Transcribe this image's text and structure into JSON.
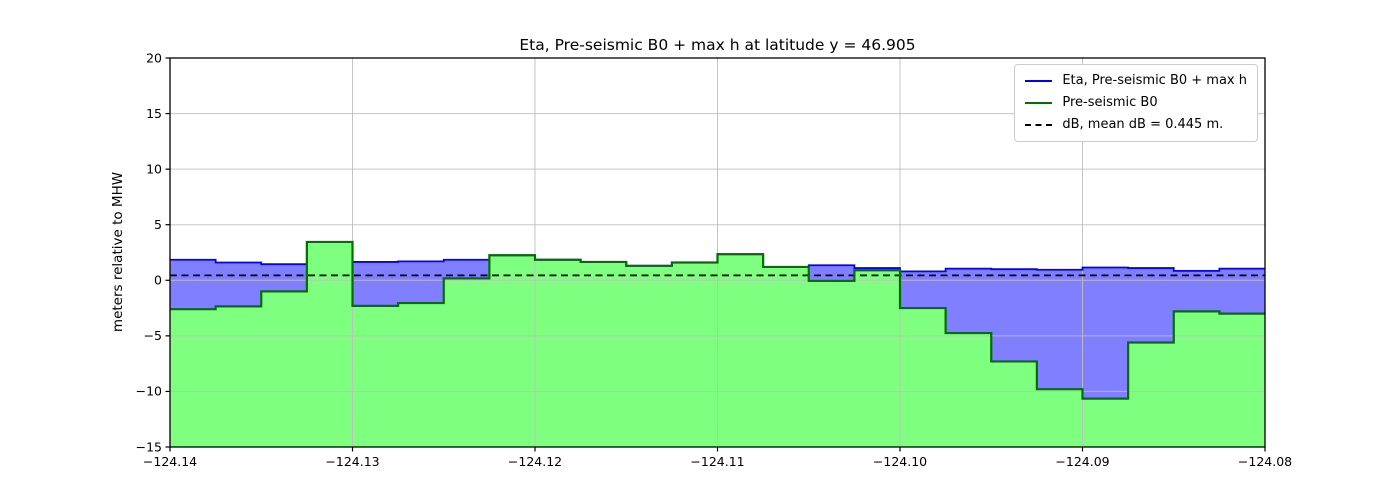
{
  "chart_data": {
    "type": "area",
    "title": "Eta, Pre-seismic B0 + max h at latitude y = 46.905",
    "ylabel": "meters relative to MHW",
    "xlabel": "",
    "xlim": [
      -124.14,
      -124.08
    ],
    "ylim": [
      -15,
      20
    ],
    "grid": true,
    "legend_position": "upper right",
    "x_ticks": [
      -124.14,
      -124.13,
      -124.12,
      -124.11,
      -124.1,
      -124.09,
      -124.08
    ],
    "x_tick_labels": [
      "−124.14",
      "−124.13",
      "−124.12",
      "−124.11",
      "−124.10",
      "−124.09",
      "−124.08"
    ],
    "y_ticks": [
      -15,
      -10,
      -5,
      0,
      5,
      10,
      15,
      20
    ],
    "y_tick_labels": [
      "−15",
      "−10",
      "−5",
      "0",
      "5",
      "10",
      "15",
      "20"
    ],
    "cell_edges": [
      -124.14,
      -124.1375,
      -124.135,
      -124.1325,
      -124.13,
      -124.1275,
      -124.125,
      -124.1225,
      -124.12,
      -124.1175,
      -124.115,
      -124.1125,
      -124.11,
      -124.1075,
      -124.105,
      -124.1025,
      -124.1,
      -124.0975,
      -124.095,
      -124.0925,
      -124.09,
      -124.0875,
      -124.085,
      -124.0825,
      -124.08
    ],
    "series": [
      {
        "name": "Eta, Pre-seismic B0 + max h",
        "style": "step",
        "color": "#0000ff",
        "fill": "rgba(0,0,255,0.5)",
        "values": [
          1.85,
          1.6,
          1.45,
          3.45,
          1.65,
          1.7,
          1.85,
          2.25,
          1.85,
          1.65,
          1.3,
          1.6,
          2.35,
          1.2,
          1.35,
          1.1,
          0.8,
          1.05,
          1.0,
          0.95,
          1.15,
          1.1,
          0.85,
          1.05
        ]
      },
      {
        "name": "Pre-seismic B0",
        "style": "step",
        "color": "#007000",
        "fill": "rgba(0,255,0,0.5)",
        "values": [
          -2.6,
          -2.35,
          -1.0,
          3.45,
          -2.3,
          -2.05,
          0.17,
          2.25,
          1.85,
          1.65,
          1.3,
          1.6,
          2.35,
          1.2,
          -0.05,
          0.9,
          -2.5,
          -4.75,
          -7.3,
          -9.8,
          -10.65,
          -5.6,
          -2.8,
          -3.0
        ]
      },
      {
        "name": "dB, mean dB = 0.445 m.",
        "style": "hline-dashed",
        "color": "#000000",
        "value": 0.445
      }
    ],
    "grid_color": "#bfbfbf",
    "axis_color": "#000000"
  }
}
